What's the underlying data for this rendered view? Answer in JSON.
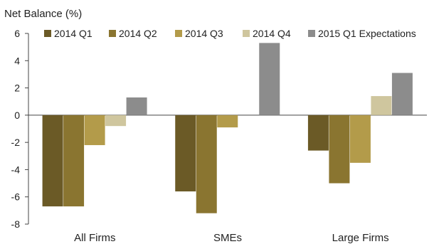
{
  "chart_data": {
    "type": "bar",
    "title": "",
    "ylabel": "Net Balance (%)",
    "xlabel": "",
    "categories": [
      "All Firms",
      "SMEs",
      "Large Firms"
    ],
    "ylim": [
      -8,
      6
    ],
    "yticks": [
      6,
      4,
      2,
      0,
      -2,
      -4,
      -6,
      -8
    ],
    "grid": false,
    "legend_position": "top",
    "series": [
      {
        "name": "2014 Q1",
        "color": "#6b5a26",
        "values": [
          -6.7,
          -5.6,
          -2.6
        ]
      },
      {
        "name": "2014 Q2",
        "color": "#8a7530",
        "values": [
          -6.7,
          -7.2,
          -5.0
        ]
      },
      {
        "name": "2014 Q3",
        "color": "#b39b4a",
        "values": [
          -2.2,
          -0.9,
          -3.5
        ]
      },
      {
        "name": "2014 Q4",
        "color": "#cfc69e",
        "values": [
          -0.8,
          0.0,
          1.4
        ]
      },
      {
        "name": "2015 Q1 Expectations",
        "color": "#8c8c8c",
        "values": [
          1.3,
          5.3,
          3.1
        ]
      }
    ]
  }
}
